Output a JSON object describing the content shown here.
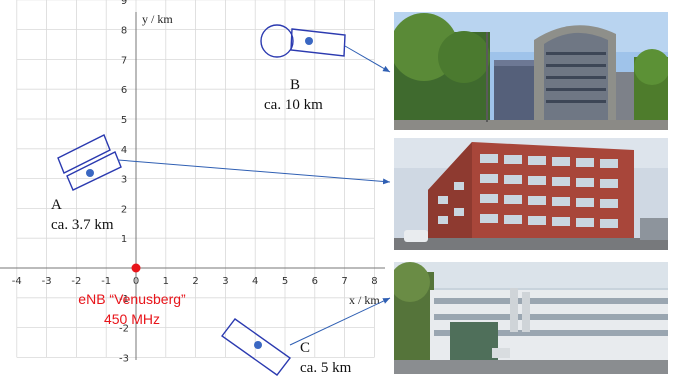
{
  "chart": {
    "xlabel": "x / km",
    "ylabel": "y / km",
    "xlim": [
      -4,
      8
    ],
    "ylim": [
      -3,
      9
    ],
    "x_ticks": [
      "-4",
      "-3",
      "-2",
      "-1",
      "0",
      "1",
      "2",
      "3",
      "4",
      "5",
      "6",
      "7",
      "8"
    ],
    "y_ticks": [
      "-3",
      "-2",
      "-1",
      "0",
      "1",
      "2",
      "3",
      "4",
      "5",
      "6",
      "7",
      "8",
      "9"
    ],
    "grid": true
  },
  "origin": {
    "line1": "eNB “Venusberg”",
    "line2": "450 MHz",
    "color": "#e8141a"
  },
  "sites": [
    {
      "letter": "A",
      "distance": "ca. 3.7 km"
    },
    {
      "letter": "B",
      "distance": "ca. 10 km"
    },
    {
      "letter": "C",
      "distance": "ca. 5 km"
    }
  ],
  "colors": {
    "accent": "#2b3ab0",
    "point": "#3a67c2",
    "grid": "#d9d9d9"
  },
  "photos": [
    {
      "subject": "curved-office-building-photo"
    },
    {
      "subject": "red-brick-office-building-photo"
    },
    {
      "subject": "white-research-building-photo"
    }
  ]
}
